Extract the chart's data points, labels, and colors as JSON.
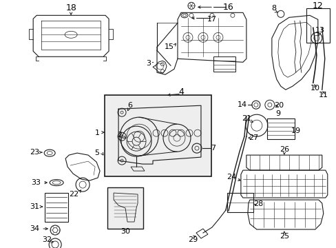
{
  "bg_color": "#ffffff",
  "line_color": "#1a1a1a",
  "figsize": [
    4.89,
    3.6
  ],
  "dpi": 100,
  "gray_fill": "#d8d8d8",
  "light_gray": "#eeeeee"
}
